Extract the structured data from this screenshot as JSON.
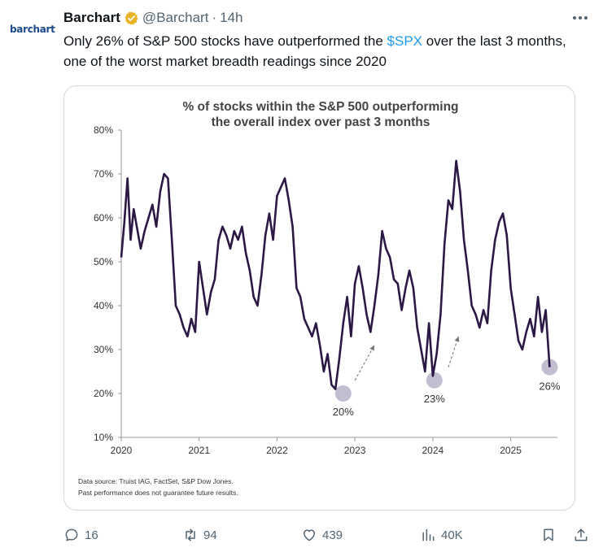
{
  "tweet": {
    "avatar_text": "barchart",
    "name": "Barchart",
    "handle": "@Barchart",
    "separator": "·",
    "time": "14h",
    "text_before": "Only 26% of S&P 500 stocks have outperformed the ",
    "cashtag": "$SPX",
    "text_after": " over the last 3 months, one of the worst market breadth readings since 2020"
  },
  "actions": {
    "replies": "16",
    "reposts": "94",
    "likes": "439",
    "views": "40K"
  },
  "colors": {
    "line": "#2b1845",
    "highlight": "#b8b2c8",
    "link": "#1d9bf0",
    "muted": "#536471"
  },
  "icons": [
    "verified-badge-icon",
    "more-icon",
    "reply-icon",
    "repost-icon",
    "like-icon",
    "views-icon",
    "bookmark-icon",
    "share-icon"
  ],
  "chart_data": {
    "type": "line",
    "title_line1": "% of stocks within the S&P 500 outperforming",
    "title_line2": "the overall index over past 3 months",
    "xlabel": "",
    "ylabel": "",
    "x_ticks": [
      "2020",
      "2021",
      "2022",
      "2023",
      "2024",
      "2025"
    ],
    "y_ticks": [
      "10%",
      "20%",
      "30%",
      "40%",
      "50%",
      "60%",
      "70%",
      "80%"
    ],
    "xlim": [
      2020.0,
      2025.6
    ],
    "ylim": [
      10,
      80
    ],
    "grid": false,
    "series": [
      {
        "x": [
          2020.0,
          2020.04,
          2020.08,
          2020.12,
          2020.16,
          2020.2,
          2020.25,
          2020.3,
          2020.35,
          2020.4,
          2020.45,
          2020.5,
          2020.55,
          2020.6,
          2020.65,
          2020.7,
          2020.75,
          2020.8,
          2020.85,
          2020.9,
          2020.95,
          2021.0,
          2021.05,
          2021.1,
          2021.15,
          2021.2,
          2021.25,
          2021.3,
          2021.35,
          2021.4,
          2021.45,
          2021.5,
          2021.55,
          2021.6,
          2021.65,
          2021.7,
          2021.75,
          2021.8,
          2021.85,
          2021.9,
          2021.95,
          2022.0,
          2022.05,
          2022.1,
          2022.15,
          2022.2,
          2022.25,
          2022.3,
          2022.35,
          2022.4,
          2022.45,
          2022.5,
          2022.55,
          2022.6,
          2022.65,
          2022.7,
          2022.75,
          2022.8,
          2022.85,
          2022.9,
          2022.95,
          2023.0,
          2023.05,
          2023.1,
          2023.15,
          2023.2,
          2023.25,
          2023.3,
          2023.35,
          2023.4,
          2023.45,
          2023.5,
          2023.55,
          2023.6,
          2023.65,
          2023.7,
          2023.75,
          2023.8,
          2023.85,
          2023.9,
          2023.95,
          2024.0,
          2024.05,
          2024.1,
          2024.15,
          2024.2,
          2024.25,
          2024.3,
          2024.35,
          2024.4,
          2024.45,
          2024.5,
          2024.55,
          2024.6,
          2024.65,
          2024.7,
          2024.75,
          2024.8,
          2024.85,
          2024.9,
          2024.95,
          2025.0,
          2025.05,
          2025.1,
          2025.15,
          2025.2,
          2025.25,
          2025.3,
          2025.35,
          2025.4,
          2025.45,
          2025.5
        ],
        "y": [
          51,
          59,
          69,
          55,
          62,
          58,
          53,
          57,
          60,
          63,
          58,
          66,
          70,
          69,
          55,
          40,
          38,
          35,
          33,
          37,
          34,
          50,
          44,
          38,
          43,
          46,
          55,
          58,
          56,
          53,
          57,
          55,
          58,
          52,
          48,
          42,
          40,
          47,
          56,
          61,
          55,
          65,
          67,
          69,
          64,
          58,
          44,
          42,
          37,
          35,
          33,
          36,
          31,
          25,
          29,
          22,
          21,
          28,
          36,
          42,
          33,
          45,
          49,
          44,
          38,
          34,
          40,
          47,
          57,
          53,
          51,
          46,
          45,
          39,
          44,
          48,
          44,
          35,
          30,
          25,
          36,
          24,
          29,
          38,
          54,
          64,
          62,
          73,
          66,
          55,
          48,
          40,
          38,
          35,
          39,
          36,
          48,
          55,
          59,
          61,
          56,
          44,
          38,
          32,
          30,
          34,
          37,
          33,
          42,
          34,
          39,
          26
        ]
      }
    ],
    "annotations": [
      {
        "x": 2022.85,
        "y": 20,
        "label": "20%"
      },
      {
        "x": 2024.02,
        "y": 23,
        "label": "23%"
      },
      {
        "x": 2025.5,
        "y": 26,
        "label": "26%"
      }
    ],
    "arrows": [
      {
        "from": [
          2023.0,
          23
        ],
        "to": [
          2023.25,
          31
        ]
      },
      {
        "from": [
          2024.2,
          26
        ],
        "to": [
          2024.33,
          33
        ]
      }
    ],
    "footnote_line1": "Data source: Truist IAG, FactSet, S&P Dow Jones.",
    "footnote_line2": "Past performance does not guarantee future results."
  }
}
